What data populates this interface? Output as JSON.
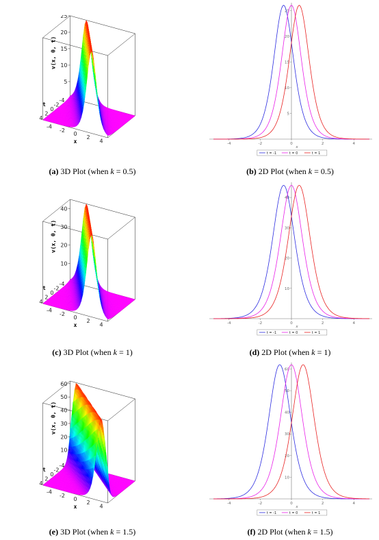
{
  "figures": [
    {
      "k": 0.5,
      "plot3d": {
        "caption_label": "(a)",
        "caption_text": "3D Plot (when ",
        "caption_var": "k",
        "caption_eq": " = 0.5)",
        "zlabel": "v(x, θ, t)",
        "tlabel": "t",
        "xlabel": "x",
        "zticks": [
          "25",
          "20",
          "15",
          "10",
          "5"
        ],
        "tticks": [
          "-4",
          "-2",
          "0",
          "2",
          "4"
        ],
        "xticks": [
          "-4",
          "-2",
          "0",
          "2",
          "4"
        ],
        "zmax": 25
      },
      "plot2d": {
        "caption_label": "(b)",
        "caption_text": "2D Plot (when ",
        "caption_var": "k",
        "caption_eq": " = 0.5)",
        "xlabel": "x",
        "xticks": [
          "-4",
          "-2",
          "0",
          "2",
          "4"
        ],
        "yticks": [
          "5",
          "10",
          "15",
          "20",
          "25"
        ],
        "ylim": [
          0,
          26.5
        ],
        "xlim": [
          -5,
          5
        ]
      }
    },
    {
      "k": 1,
      "plot3d": {
        "caption_label": "(c)",
        "caption_text": "3D Plot (when ",
        "caption_var": "k",
        "caption_eq": " = 1)",
        "zlabel": "v(x, θ, t)",
        "tlabel": "t",
        "xlabel": "x",
        "zticks": [
          "40",
          "30",
          "20",
          "10"
        ],
        "tticks": [
          "-4",
          "-2",
          "0",
          "2",
          "4"
        ],
        "xticks": [
          "-4",
          "-2",
          "0",
          "2",
          "4"
        ],
        "zmax": 45
      },
      "plot2d": {
        "caption_label": "(d)",
        "caption_text": "2D Plot (when ",
        "caption_var": "k",
        "caption_eq": " = 1)",
        "xlabel": "x",
        "xticks": [
          "-4",
          "-2",
          "0",
          "2",
          "4"
        ],
        "yticks": [
          "10",
          "20",
          "30",
          "40"
        ],
        "ylim": [
          0,
          45
        ],
        "xlim": [
          -5,
          5
        ]
      }
    },
    {
      "k": 1.5,
      "plot3d": {
        "caption_label": "(e)",
        "caption_text": "3D Plot (when ",
        "caption_var": "k",
        "caption_eq": " = 1.5)",
        "zlabel": "v(x, θ, t)",
        "tlabel": "t",
        "xlabel": "x",
        "zticks": [
          "60",
          "50",
          "40",
          "30",
          "20",
          "10"
        ],
        "tticks": [
          "-4",
          "-2",
          "0",
          "2",
          "4"
        ],
        "xticks": [
          "-4",
          "-2",
          "0",
          "2",
          "4"
        ],
        "zmax": 62
      },
      "plot2d": {
        "caption_label": "(f)",
        "caption_text": "2D Plot (when ",
        "caption_var": "k",
        "caption_eq": " = 1.5)",
        "xlabel": "x",
        "xticks": [
          "-4",
          "-2",
          "0",
          "2",
          "4"
        ],
        "yticks": [
          "10",
          "20",
          "30",
          "40",
          "50",
          "60"
        ],
        "ylim": [
          0,
          63
        ],
        "xlim": [
          -5,
          5
        ]
      }
    }
  ],
  "chart_data": [
    {
      "type": "surface",
      "zlabel": "v(x, θ, t)",
      "xlabel": "x",
      "ylabel": "t",
      "xlim": [
        -5,
        5
      ],
      "tlim": [
        -5,
        5
      ],
      "zlim": [
        0,
        25
      ],
      "peak": 25
    },
    {
      "type": "line",
      "xlabel": "x",
      "xlim": [
        -5,
        5
      ],
      "ylim": [
        0,
        26.5
      ],
      "series": [
        {
          "name": "t = -1",
          "color": "#2a2ae0",
          "peak_x": -0.5,
          "peak_y": 26
        },
        {
          "name": "t = 0",
          "color": "#e81ee8",
          "peak_x": 0.0,
          "peak_y": 26
        },
        {
          "name": "t = 1",
          "color": "#e82020",
          "peak_x": 0.5,
          "peak_y": 26
        }
      ],
      "legend": "bottom"
    },
    {
      "type": "surface",
      "zlabel": "v(x, θ, t)",
      "xlabel": "x",
      "ylabel": "t",
      "xlim": [
        -5,
        5
      ],
      "tlim": [
        -5,
        5
      ],
      "zlim": [
        0,
        45
      ],
      "peak": 44
    },
    {
      "type": "line",
      "xlabel": "x",
      "xlim": [
        -5,
        5
      ],
      "ylim": [
        0,
        45
      ],
      "series": [
        {
          "name": "t = -1",
          "color": "#2a2ae0",
          "peak_x": -0.5,
          "peak_y": 44
        },
        {
          "name": "t = 0",
          "color": "#e81ee8",
          "peak_x": 0.0,
          "peak_y": 44
        },
        {
          "name": "t = 1",
          "color": "#e82020",
          "peak_x": 0.5,
          "peak_y": 44
        }
      ],
      "legend": "bottom"
    },
    {
      "type": "surface",
      "zlabel": "v(x, θ, t)",
      "xlabel": "x",
      "ylabel": "t",
      "xlim": [
        -5,
        5
      ],
      "tlim": [
        -5,
        5
      ],
      "zlim": [
        0,
        62
      ],
      "peak": 62
    },
    {
      "type": "line",
      "xlabel": "x",
      "xlim": [
        -5,
        5
      ],
      "ylim": [
        0,
        63
      ],
      "series": [
        {
          "name": "t = -1",
          "color": "#2a2ae0",
          "peak_x": -0.75,
          "peak_y": 62
        },
        {
          "name": "t = 0",
          "color": "#e81ee8",
          "peak_x": 0.0,
          "peak_y": 62
        },
        {
          "name": "t = 1",
          "color": "#e82020",
          "peak_x": 0.75,
          "peak_y": 62
        }
      ],
      "legend": "bottom"
    }
  ]
}
